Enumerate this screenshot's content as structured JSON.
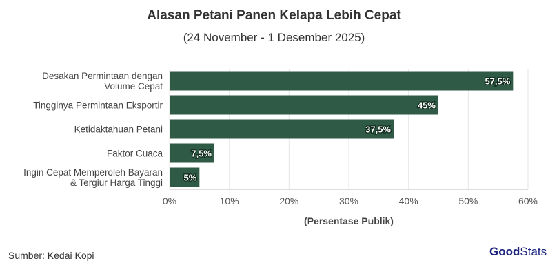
{
  "chart_data": {
    "type": "bar",
    "orientation": "horizontal",
    "title": "Alasan Petani Panen Kelapa Lebih Cepat",
    "subtitle": "(24 November - 1 Desember 2025)",
    "categories": [
      [
        "Desakan Permintaan dengan",
        "Volume Cepat"
      ],
      [
        "Tingginya Permintaan Eksportir"
      ],
      [
        "Ketidaktahuan Petani"
      ],
      [
        "Faktor Cuaca"
      ],
      [
        "Ingin Cepat Memperoleh Bayaran",
        "& Tergiur Harga Tinggi"
      ]
    ],
    "values": [
      57.5,
      45,
      37.5,
      7.5,
      5
    ],
    "data_labels": [
      "57,5%",
      "45%",
      "37,5%",
      "7,5%",
      "5%"
    ],
    "xlabel": "(Persentase Publik)",
    "xlim": [
      0,
      60
    ],
    "xticks": [
      0,
      10,
      20,
      30,
      40,
      50,
      60
    ],
    "xtick_labels": [
      "0%",
      "10%",
      "20%",
      "30%",
      "40%",
      "50%",
      "60%"
    ],
    "grid": "vertical",
    "bar_color": "#2f5a45"
  },
  "footer": {
    "source": "Sumber: Kedai Kopi",
    "logo_bold": "Good",
    "logo_rest": "Stats"
  }
}
